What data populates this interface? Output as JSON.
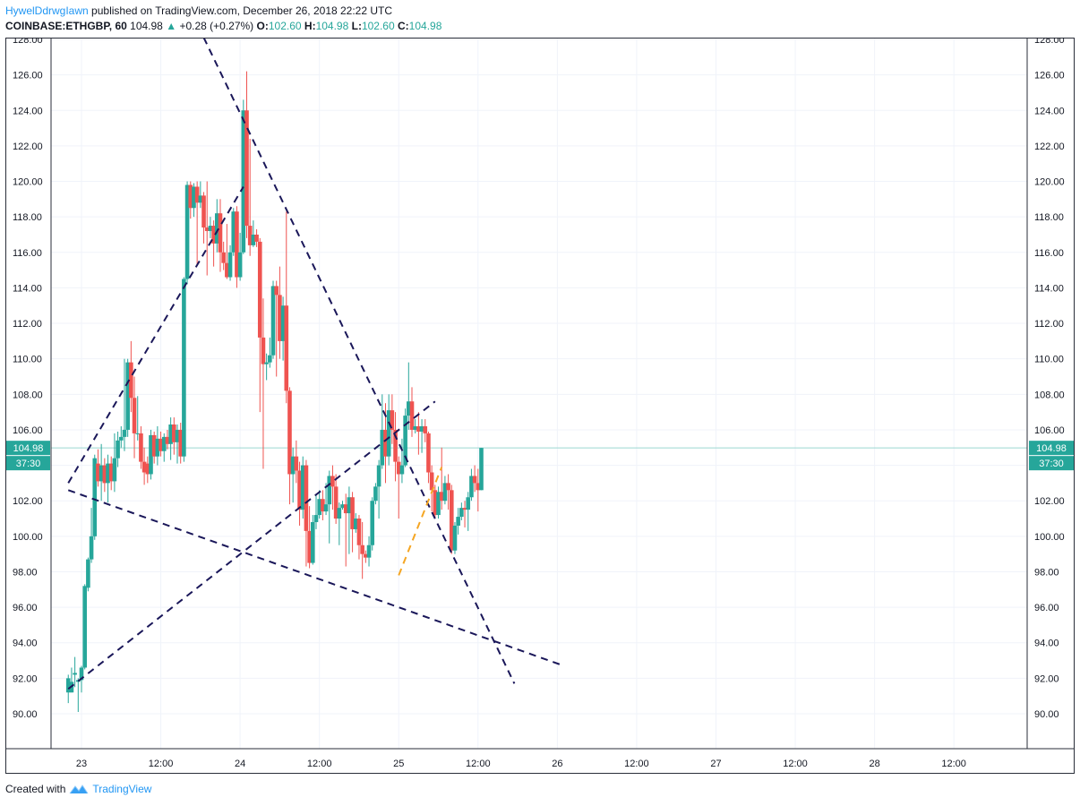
{
  "header": {
    "author": "HywelDdrwgIawn",
    "published": "published on TradingView.com, December 26, 2018 22:22 UTC",
    "symbol": "COINBASE:ETHGBP, 60",
    "last": "104.98",
    "change_arrow": "▲",
    "change": "+0.28 (+0.27%)",
    "o_label": "O:",
    "o_val": "102.60",
    "h_label": "H:",
    "h_val": "104.98",
    "l_label": "L:",
    "l_val": "102.60",
    "c_label": "C:",
    "c_val": "104.98"
  },
  "footer": {
    "created_with": "Created with",
    "brand": "TradingView",
    "logo_icon": "tradingview-logo-icon"
  },
  "colors": {
    "up": "#26a69a",
    "down": "#ef5350",
    "trend": "#1a1759",
    "trend_orange": "#f5a623",
    "price_line": "#9bd6d1",
    "grid": "#f0f3fa",
    "axis_text": "#131722"
  },
  "chart_data": {
    "type": "candlestick",
    "interval": "60",
    "ylim": [
      88.0,
      128.0
    ],
    "y_ticks": [
      "90.00",
      "92.00",
      "94.00",
      "96.00",
      "98.00",
      "100.00",
      "102.00",
      "104.00",
      "106.00",
      "108.00",
      "110.00",
      "112.00",
      "114.00",
      "116.00",
      "118.00",
      "120.00",
      "122.00",
      "124.00",
      "126.00",
      "128.00"
    ],
    "x_ticks": [
      {
        "label": "23",
        "t": 0
      },
      {
        "label": "12:00",
        "t": 12
      },
      {
        "label": "24",
        "t": 24
      },
      {
        "label": "12:00",
        "t": 36
      },
      {
        "label": "25",
        "t": 48
      },
      {
        "label": "12:00",
        "t": 60
      },
      {
        "label": "26",
        "t": 72
      },
      {
        "label": "12:00",
        "t": 84
      },
      {
        "label": "27",
        "t": 96
      },
      {
        "label": "12:00",
        "t": 108
      },
      {
        "label": "28",
        "t": 120
      },
      {
        "label": "12:00",
        "t": 132
      }
    ],
    "last_price": {
      "value": 104.98,
      "label": "104.98",
      "countdown": "37:30"
    },
    "candles": [
      [
        -2,
        91.2,
        92.0,
        90.6,
        92.2
      ],
      [
        -1.5,
        91.2,
        91.8,
        91.2,
        92.6
      ],
      [
        -1,
        92.2,
        92.3,
        91.5,
        93.2
      ],
      [
        -0.5,
        91.8,
        91.9,
        90.1,
        92.0
      ],
      [
        0,
        91.9,
        92.6,
        91.2,
        92.7
      ],
      [
        0.5,
        92.6,
        97.2,
        92.5,
        97.3
      ],
      [
        1,
        97.1,
        98.7,
        96.9,
        98.8
      ],
      [
        1.5,
        98.7,
        100.0,
        98.5,
        101.6
      ],
      [
        2,
        100.0,
        104.4,
        99.8,
        104.6
      ],
      [
        2.5,
        104.1,
        103.1,
        102.8,
        104.9
      ],
      [
        3,
        103.1,
        104.0,
        102.0,
        105.2
      ],
      [
        3.5,
        104.0,
        103.0,
        102.5,
        104.4
      ],
      [
        4,
        103.0,
        104.1,
        101.9,
        104.6
      ],
      [
        4.5,
        104.1,
        103.1,
        102.6,
        104.5
      ],
      [
        5,
        103.1,
        104.4,
        102.5,
        105.8
      ],
      [
        5.5,
        104.4,
        105.4,
        103.9,
        105.9
      ],
      [
        6,
        105.4,
        105.6,
        105.0,
        106.2
      ],
      [
        6.5,
        105.6,
        106.0,
        104.8,
        110.0
      ],
      [
        7,
        106.0,
        109.8,
        105.6,
        110.0
      ],
      [
        7.5,
        109.8,
        107.8,
        107.0,
        111.0
      ],
      [
        8,
        107.8,
        105.8,
        104.4,
        109.0
      ],
      [
        8.5,
        105.8,
        105.8,
        105.4,
        107.9
      ],
      [
        9,
        105.8,
        104.2,
        103.8,
        106.2
      ],
      [
        9.5,
        104.2,
        103.6,
        102.9,
        105.0
      ],
      [
        10,
        104.1,
        103.5,
        103.0,
        104.5
      ],
      [
        10.5,
        103.5,
        105.7,
        103.2,
        106.0
      ],
      [
        11,
        105.7,
        104.5,
        104.1,
        105.9
      ],
      [
        11.5,
        104.5,
        105.5,
        104.0,
        106.2
      ],
      [
        12,
        105.5,
        104.8,
        104.5,
        105.9
      ],
      [
        12.5,
        104.8,
        105.6,
        104.2,
        105.8
      ],
      [
        13,
        105.6,
        105.2,
        104.9,
        106.0
      ],
      [
        13.5,
        105.2,
        106.3,
        104.3,
        106.7
      ],
      [
        14,
        106.3,
        105.3,
        104.6,
        106.7
      ],
      [
        14.5,
        105.3,
        106.0,
        104.1,
        106.3
      ],
      [
        15,
        106.0,
        104.5,
        104.1,
        106.4
      ],
      [
        15.5,
        104.5,
        114.5,
        104.2,
        114.6
      ],
      [
        16,
        114.5,
        119.8,
        114.2,
        120.0
      ],
      [
        16.5,
        119.8,
        118.5,
        117.9,
        120.0
      ],
      [
        17,
        118.5,
        119.7,
        118.0,
        119.9
      ],
      [
        17.5,
        119.7,
        118.8,
        115.3,
        120.0
      ],
      [
        18,
        118.8,
        119.2,
        118.5,
        120.0
      ],
      [
        18.5,
        119.2,
        117.4,
        116.5,
        119.4
      ],
      [
        19,
        117.4,
        117.2,
        114.7,
        120.0
      ],
      [
        19.5,
        117.2,
        117.5,
        116.8,
        118.0
      ],
      [
        20,
        117.5,
        116.5,
        115.2,
        117.8
      ],
      [
        20.5,
        116.5,
        118.2,
        116.0,
        119.0
      ],
      [
        21,
        118.2,
        116.0,
        114.9,
        119.0
      ],
      [
        21.5,
        116.0,
        115.4,
        115.0,
        116.6
      ],
      [
        22,
        115.4,
        114.6,
        114.5,
        117.6
      ],
      [
        22.5,
        114.6,
        116.0,
        114.4,
        116.4
      ],
      [
        23,
        116.0,
        118.3,
        115.8,
        118.5
      ],
      [
        23.5,
        118.3,
        114.6,
        114.0,
        118.6
      ],
      [
        24,
        114.6,
        116.0,
        114.4,
        117.1
      ],
      [
        24.5,
        116.0,
        124.0,
        115.9,
        124.6
      ],
      [
        25,
        124.0,
        117.5,
        116.8,
        126.2
      ],
      [
        25.5,
        117.5,
        116.4,
        115.8,
        122.4
      ],
      [
        26,
        116.4,
        117.0,
        116.3,
        117.8
      ],
      [
        26.5,
        117.0,
        116.6,
        116.3,
        117.3
      ],
      [
        27,
        116.6,
        111.2,
        107.0,
        116.8
      ],
      [
        27.5,
        111.2,
        109.7,
        103.8,
        113.4
      ],
      [
        28,
        109.7,
        109.8,
        108.8,
        110.3
      ],
      [
        28.5,
        109.8,
        110.2,
        109.5,
        111.2
      ],
      [
        29,
        110.2,
        114.1,
        110.0,
        114.4
      ],
      [
        29.5,
        114.1,
        113.6,
        109.0,
        114.4
      ],
      [
        30,
        113.6,
        111.0,
        110.0,
        115.2
      ],
      [
        30.5,
        111.0,
        113.0,
        109.9,
        113.5
      ],
      [
        31,
        113.0,
        108.2,
        107.5,
        118.3
      ],
      [
        31.5,
        108.2,
        103.5,
        101.8,
        108.4
      ],
      [
        32,
        103.5,
        104.5,
        101.9,
        105.0
      ],
      [
        32.5,
        104.5,
        103.7,
        103.0,
        105.4
      ],
      [
        33,
        103.7,
        101.5,
        100.6,
        104.2
      ],
      [
        33.5,
        101.5,
        104.0,
        101.0,
        104.5
      ],
      [
        34,
        104.0,
        100.3,
        98.3,
        104.3
      ],
      [
        34.5,
        100.3,
        98.5,
        98.2,
        101.7
      ],
      [
        35,
        98.5,
        100.8,
        98.4,
        101.2
      ],
      [
        35.5,
        100.8,
        101.2,
        100.4,
        102.4
      ],
      [
        36,
        101.2,
        102.1,
        101.0,
        102.6
      ],
      [
        36.5,
        102.1,
        101.4,
        100.9,
        102.6
      ],
      [
        37,
        101.4,
        101.8,
        101.2,
        103.0
      ],
      [
        37.5,
        101.8,
        103.4,
        99.6,
        103.7
      ],
      [
        38,
        103.4,
        102.8,
        101.5,
        104.0
      ],
      [
        38.5,
        102.8,
        101.0,
        100.7,
        103.5
      ],
      [
        39,
        101.0,
        101.6,
        99.5,
        101.9
      ],
      [
        39.5,
        101.6,
        101.8,
        101.5,
        102.0
      ],
      [
        40,
        101.8,
        101.3,
        98.3,
        102.4
      ],
      [
        40.5,
        101.3,
        102.2,
        99.0,
        102.8
      ],
      [
        41,
        102.2,
        100.4,
        99.1,
        102.5
      ],
      [
        41.5,
        100.4,
        101.0,
        100.2,
        101.3
      ],
      [
        42,
        101.0,
        99.5,
        98.7,
        101.2
      ],
      [
        42.5,
        99.5,
        99.0,
        97.6,
        100.8
      ],
      [
        43,
        99.0,
        98.8,
        98.5,
        99.2
      ],
      [
        43.5,
        98.8,
        99.5,
        98.3,
        100.0
      ],
      [
        44,
        99.5,
        102.0,
        99.2,
        102.2
      ],
      [
        44.5,
        102.0,
        102.8,
        101.8,
        103.0
      ],
      [
        45,
        102.8,
        104.0,
        101.0,
        104.3
      ],
      [
        45.5,
        104.0,
        106.0,
        103.8,
        108.0
      ],
      [
        46,
        106.0,
        104.5,
        103.0,
        107.5
      ],
      [
        46.5,
        104.5,
        107.1,
        104.0,
        108.0
      ],
      [
        47,
        107.1,
        106.0,
        105.2,
        108.0
      ],
      [
        47.5,
        106.0,
        104.2,
        103.1,
        107.0
      ],
      [
        48,
        104.2,
        103.5,
        101.0,
        104.5
      ],
      [
        48.5,
        103.5,
        104.0,
        103.0,
        105.5
      ],
      [
        49,
        104.0,
        106.8,
        103.9,
        107.2
      ],
      [
        49.5,
        106.8,
        107.6,
        106.0,
        109.8
      ],
      [
        50,
        107.6,
        106.0,
        105.6,
        108.4
      ],
      [
        50.5,
        106.0,
        106.2,
        105.8,
        106.6
      ],
      [
        51,
        106.2,
        105.9,
        104.6,
        107.0
      ],
      [
        51.5,
        105.9,
        106.2,
        104.7,
        106.6
      ],
      [
        52,
        106.2,
        105.8,
        105.3,
        106.6
      ],
      [
        52.5,
        105.8,
        103.6,
        103.0,
        105.9
      ],
      [
        53,
        103.6,
        102.6,
        101.4,
        104.0
      ],
      [
        53.5,
        102.6,
        101.2,
        101.0,
        102.9
      ],
      [
        54,
        101.2,
        102.5,
        101.0,
        102.8
      ],
      [
        54.5,
        102.5,
        102.0,
        101.5,
        105.0
      ],
      [
        55,
        102.0,
        103.0,
        101.8,
        103.4
      ],
      [
        55.5,
        103.0,
        102.6,
        101.5,
        103.5
      ],
      [
        56,
        102.6,
        99.2,
        99.0,
        102.9
      ],
      [
        56.5,
        99.2,
        100.6,
        99.0,
        100.8
      ],
      [
        57,
        100.6,
        101.1,
        100.1,
        101.6
      ],
      [
        57.5,
        101.1,
        101.6,
        100.9,
        101.9
      ],
      [
        58,
        101.6,
        101.5,
        100.5,
        102.0
      ],
      [
        58.5,
        101.5,
        102.2,
        100.3,
        102.5
      ],
      [
        59,
        102.2,
        103.4,
        102.0,
        103.8
      ],
      [
        59.5,
        103.4,
        103.0,
        102.5,
        104.0
      ],
      [
        60,
        103.0,
        102.6,
        101.4,
        103.8
      ],
      [
        60.5,
        102.6,
        104.98,
        102.6,
        104.98
      ]
    ],
    "trendlines": [
      {
        "color": "navy",
        "style": "dashed",
        "from": [
          -2,
          103.0
        ],
        "to": [
          24.5,
          119.7
        ]
      },
      {
        "color": "navy",
        "style": "dashed",
        "from": [
          -2,
          102.6
        ],
        "to": [
          73,
          92.7
        ]
      },
      {
        "color": "navy",
        "style": "dashed",
        "from": [
          -2,
          91.4
        ],
        "to": [
          53.5,
          107.6
        ]
      },
      {
        "color": "navy",
        "style": "dashed",
        "from": [
          18.5,
          128.1
        ],
        "to": [
          65.5,
          91.7
        ]
      },
      {
        "color": "orange",
        "style": "dashed",
        "from": [
          48,
          97.8
        ],
        "to": [
          54.5,
          103.9
        ]
      }
    ]
  }
}
